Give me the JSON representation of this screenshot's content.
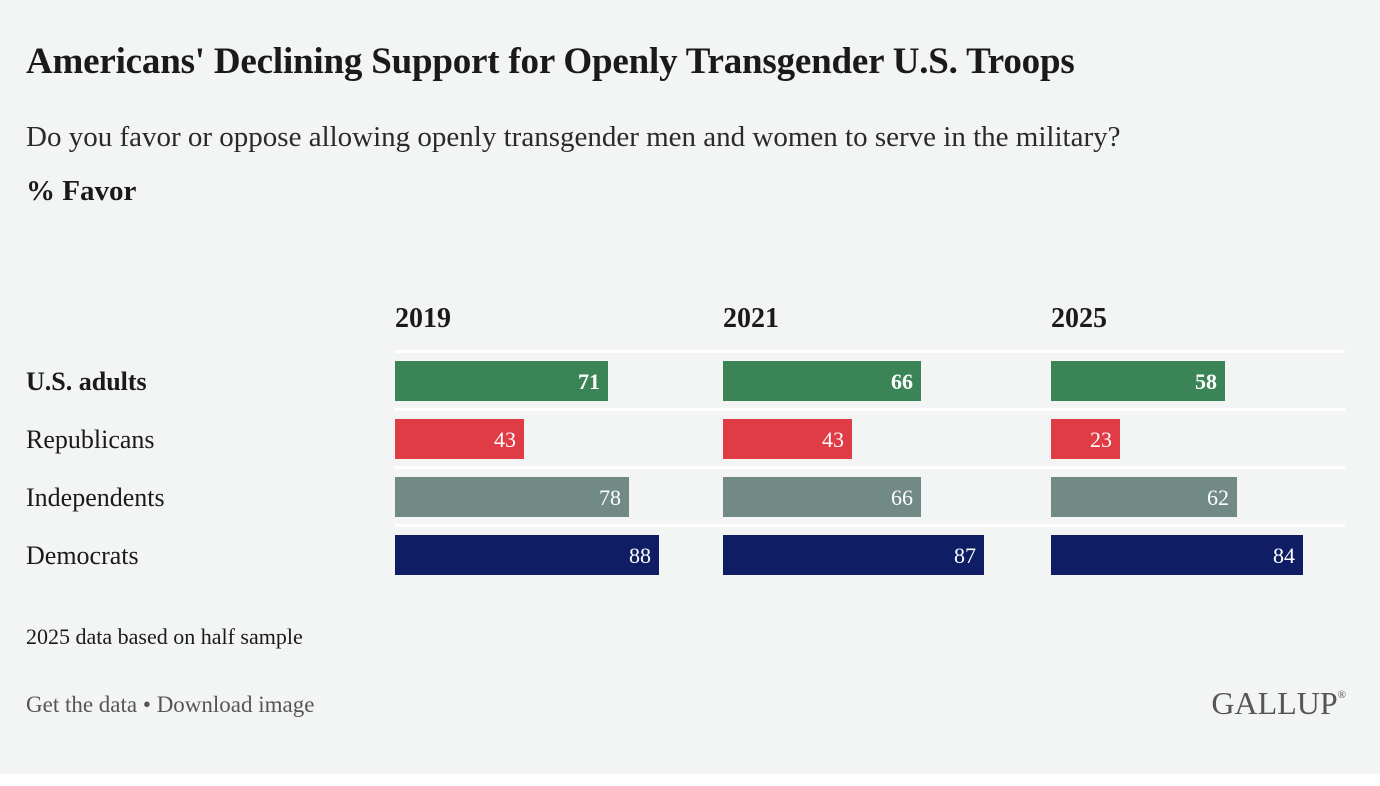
{
  "chart_data": {
    "type": "bar",
    "title": "Americans' Declining Support for Openly Transgender U.S. Troops",
    "subtitle": "Do you favor or oppose allowing openly transgender men and women to serve in the military?",
    "unit_label": "% Favor",
    "panels": [
      "2019",
      "2021",
      "2025"
    ],
    "categories": [
      "U.S. adults",
      "Republicans",
      "Independents",
      "Democrats"
    ],
    "series": [
      {
        "panel": "2019",
        "values": [
          71,
          43,
          78,
          88
        ]
      },
      {
        "panel": "2021",
        "values": [
          66,
          43,
          66,
          87
        ]
      },
      {
        "panel": "2025",
        "values": [
          58,
          23,
          62,
          84
        ]
      }
    ],
    "colors": [
      "#3b8455",
      "#e03c45",
      "#728a86",
      "#0e1d64"
    ],
    "xlim": [
      0,
      100
    ],
    "note": "2025 data based on half sample"
  },
  "footer": {
    "get_data": "Get the data",
    "separator": "•",
    "download": "Download image",
    "logo": "GALLUP",
    "logo_mark": "®"
  }
}
